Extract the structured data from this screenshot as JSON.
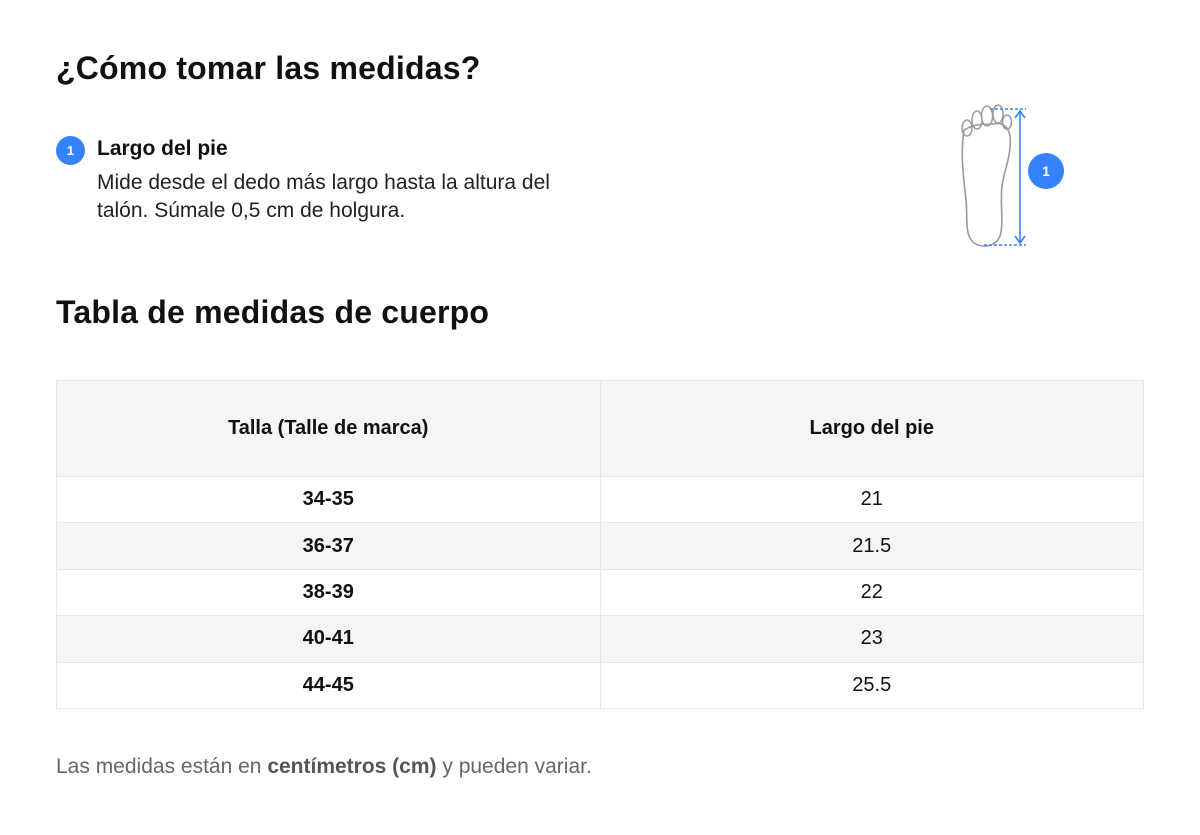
{
  "heading_measure": "¿Cómo tomar las medidas?",
  "step": {
    "number": "1",
    "title": "Largo del pie",
    "description": "Mide desde el dedo más largo hasta la altura del talón. Súmale 0,5 cm de holgura."
  },
  "illustration": {
    "icon": "foot-outline-icon",
    "badge": "1",
    "accent_color": "#3483fa"
  },
  "heading_table": "Tabla de medidas de cuerpo",
  "table": {
    "columns": [
      "Talla (Talle de marca)",
      "Largo del pie"
    ],
    "rows": [
      {
        "size": "34-35",
        "length": "21"
      },
      {
        "size": "36-37",
        "length": "21.5"
      },
      {
        "size": "38-39",
        "length": "22"
      },
      {
        "size": "40-41",
        "length": "23"
      },
      {
        "size": "44-45",
        "length": "25.5"
      }
    ]
  },
  "note": {
    "prefix": "Las medidas están en ",
    "bold": "centímetros (cm)",
    "suffix": " y pueden variar."
  }
}
